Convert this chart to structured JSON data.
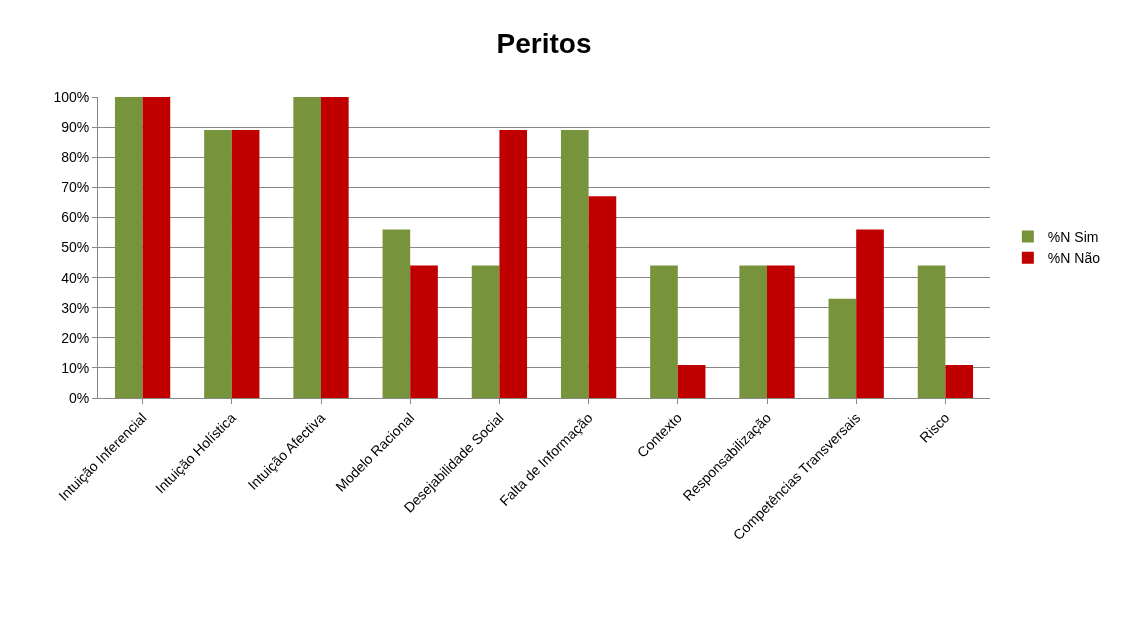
{
  "chart_data": {
    "type": "bar",
    "title": "Peritos",
    "categories": [
      "Intuição Inferencial",
      "Intuição Holística",
      "Intuição Afectiva",
      "Modelo Racional",
      "Desejabilidade Social",
      "Falta de Informação",
      "Contexto",
      "Responsabilização",
      "Competências Transversais",
      "Risco"
    ],
    "series": [
      {
        "name": "%N Sim",
        "color": "#77933c",
        "values": [
          100,
          89,
          100,
          56,
          44,
          89,
          44,
          44,
          33,
          44
        ]
      },
      {
        "name": "%N Não",
        "color": "#c00000",
        "values": [
          100,
          89,
          100,
          44,
          89,
          67,
          11,
          44,
          56,
          11
        ]
      }
    ],
    "ylim": [
      0,
      100
    ],
    "yticks": [
      {
        "value": 0,
        "label": "0%"
      },
      {
        "value": 10,
        "label": "10%"
      },
      {
        "value": 20,
        "label": "20%"
      },
      {
        "value": 30,
        "label": "30%"
      },
      {
        "value": 40,
        "label": "40%"
      },
      {
        "value": 50,
        "label": "50%"
      },
      {
        "value": 60,
        "label": "60%"
      },
      {
        "value": 70,
        "label": "70%"
      },
      {
        "value": 80,
        "label": "80%"
      },
      {
        "value": 90,
        "label": "90%"
      },
      {
        "value": 100,
        "label": "100%"
      }
    ],
    "grid": "y",
    "legend": "right"
  }
}
